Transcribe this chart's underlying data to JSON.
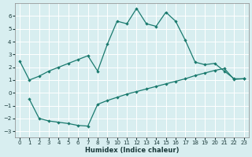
{
  "curve1_x": [
    0,
    1,
    2,
    3,
    4,
    5,
    6,
    7,
    8,
    9,
    10,
    11,
    12,
    13,
    14,
    15,
    16,
    17,
    18,
    19,
    20,
    21,
    22,
    23
  ],
  "curve1_y": [
    2.5,
    1.0,
    1.3,
    1.7,
    2.0,
    2.3,
    2.6,
    2.9,
    1.7,
    3.8,
    5.6,
    5.4,
    6.6,
    5.4,
    5.2,
    6.3,
    5.6,
    4.1,
    2.4,
    2.2,
    2.3,
    1.7,
    1.1,
    1.1
  ],
  "curve2_x": [
    1,
    2,
    3,
    4,
    5,
    6,
    7,
    8,
    9,
    10,
    11,
    12,
    13,
    14,
    15,
    16,
    17,
    18,
    19,
    20,
    21,
    22,
    23
  ],
  "curve2_y": [
    -0.5,
    -2.0,
    -2.2,
    -2.3,
    -2.4,
    -2.55,
    -2.6,
    -0.9,
    -0.6,
    -0.35,
    -0.1,
    0.1,
    0.3,
    0.5,
    0.7,
    0.9,
    1.1,
    1.35,
    1.55,
    1.75,
    1.9,
    1.05,
    1.1
  ],
  "line_color": "#1a7a6e",
  "bg_color": "#d8eef0",
  "grid_color": "#ffffff",
  "xlabel": "Humidex (Indice chaleur)",
  "ylim": [
    -3.5,
    7.0
  ],
  "xlim": [
    -0.5,
    23.5
  ],
  "yticks": [
    -3,
    -2,
    -1,
    0,
    1,
    2,
    3,
    4,
    5,
    6
  ],
  "xticks": [
    0,
    1,
    2,
    3,
    4,
    5,
    6,
    7,
    8,
    9,
    10,
    11,
    12,
    13,
    14,
    15,
    16,
    17,
    18,
    19,
    20,
    21,
    22,
    23
  ]
}
